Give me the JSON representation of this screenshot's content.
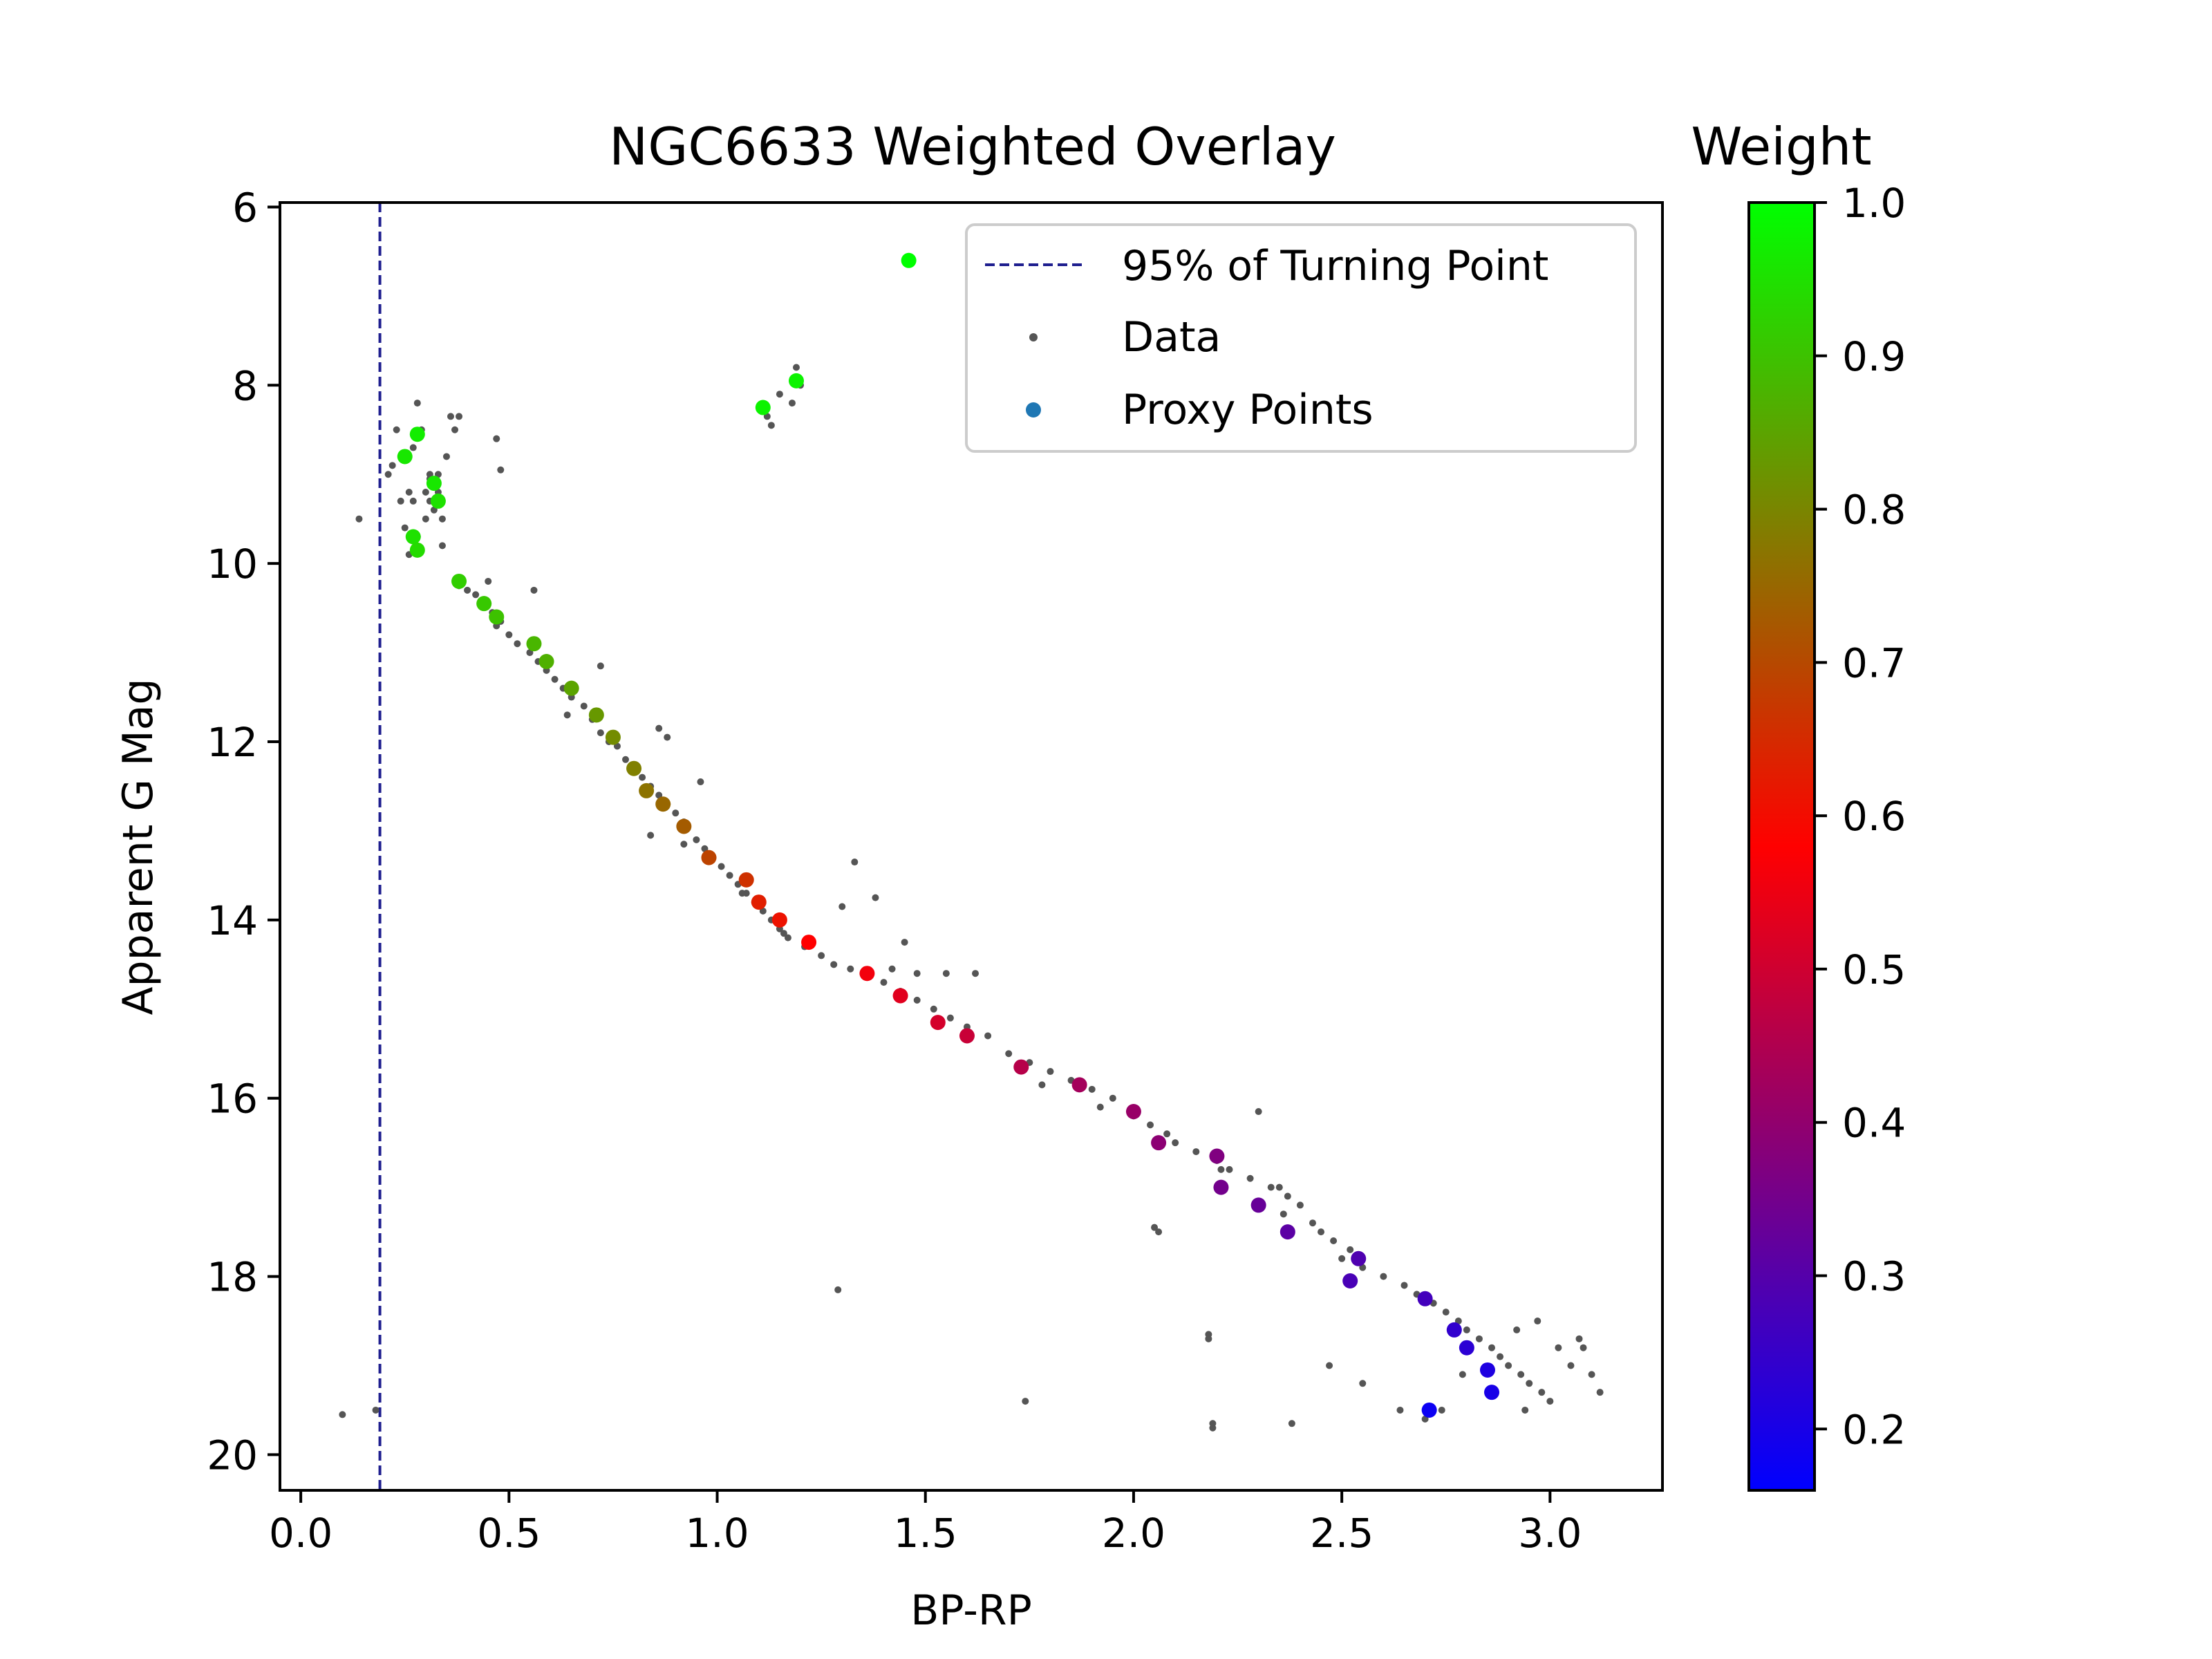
{
  "chart_data": {
    "type": "scatter",
    "title": "NGC6633 Weighted Overlay",
    "xlabel": "BP-RP",
    "ylabel": "Apparent G Mag",
    "xlim": [
      -0.05,
      3.27
    ],
    "ylim": [
      20.4,
      5.95
    ],
    "y_inverted": true,
    "xticks": [
      "0.0",
      "0.5",
      "1.0",
      "1.5",
      "2.0",
      "2.5",
      "3.0"
    ],
    "yticks": [
      "6",
      "8",
      "10",
      "12",
      "14",
      "16",
      "18",
      "20"
    ],
    "grid": false,
    "legend_position": "top-right",
    "turning_point_line": {
      "name": "95% of Turning Point",
      "x": 0.19,
      "color": "#1f1f8f",
      "style": "dashed"
    },
    "data_series": {
      "name": "Data",
      "color": "#555555",
      "x": [
        0.1,
        0.14,
        0.21,
        0.22,
        0.23,
        0.24,
        0.25,
        0.26,
        0.27,
        0.28,
        0.29,
        0.3,
        0.31,
        0.32,
        0.33,
        0.34,
        0.35,
        0.36,
        0.37,
        0.48,
        0.47,
        0.26,
        0.28,
        0.3,
        0.27,
        0.33,
        0.31,
        0.38,
        0.4,
        0.42,
        0.44,
        0.46,
        0.48,
        0.5,
        0.52,
        0.55,
        0.57,
        0.59,
        0.61,
        0.63,
        0.65,
        0.68,
        0.7,
        0.72,
        0.74,
        0.76,
        0.78,
        0.8,
        0.82,
        0.84,
        0.86,
        0.88,
        0.9,
        0.92,
        0.95,
        0.97,
        0.99,
        1.01,
        1.03,
        1.05,
        1.07,
        1.09,
        1.11,
        1.13,
        1.15,
        1.17,
        1.21,
        1.25,
        1.28,
        1.32,
        1.36,
        1.4,
        1.44,
        1.48,
        1.52,
        1.56,
        1.6,
        1.65,
        1.7,
        1.75,
        1.8,
        1.85,
        1.9,
        1.95,
        2.0,
        2.04,
        2.08,
        2.1,
        2.15,
        2.2,
        2.23,
        2.28,
        2.33,
        2.37,
        2.4,
        2.43,
        2.45,
        2.48,
        2.5,
        2.55,
        2.6,
        2.65,
        2.68,
        2.72,
        2.75,
        2.78,
        2.8,
        2.83,
        2.86,
        2.88,
        2.9,
        2.93,
        2.95,
        2.98,
        3.0,
        3.05,
        3.08,
        3.12,
        1.12,
        1.15,
        1.19,
        1.2,
        1.13,
        1.18,
        1.29,
        1.3,
        1.38,
        1.42,
        1.45,
        1.48,
        1.55,
        1.62,
        1.78,
        1.92,
        2.06,
        2.18,
        2.19,
        2.21,
        2.3,
        2.35,
        2.36,
        2.47,
        2.52,
        2.55,
        2.64,
        2.7,
        2.74,
        2.79,
        2.92,
        2.94,
        2.97,
        3.02,
        3.07,
        3.1,
        0.38,
        0.56,
        0.72,
        0.86,
        0.88,
        0.96,
        1.06,
        1.16,
        0.18,
        0.31,
        0.34,
        0.45,
        0.47,
        0.64,
        0.84,
        1.33,
        1.74,
        2.18,
        2.19,
        2.38,
        2.05,
        0.92
      ],
      "y": [
        19.55,
        9.5,
        9.0,
        8.9,
        8.5,
        9.3,
        9.6,
        9.2,
        8.7,
        8.2,
        8.5,
        9.2,
        9.3,
        9.4,
        9.2,
        9.5,
        8.8,
        8.35,
        8.5,
        8.95,
        8.6,
        9.9,
        9.7,
        9.5,
        9.3,
        9.0,
        9.05,
        10.25,
        10.3,
        10.35,
        10.45,
        10.55,
        10.65,
        10.8,
        10.9,
        11.0,
        11.1,
        11.2,
        11.3,
        11.4,
        11.5,
        11.6,
        11.75,
        11.9,
        12.0,
        12.05,
        12.2,
        12.3,
        12.4,
        12.5,
        12.6,
        12.7,
        12.8,
        12.9,
        13.1,
        13.2,
        13.3,
        13.4,
        13.5,
        13.6,
        13.7,
        13.8,
        13.9,
        14.0,
        14.1,
        14.2,
        14.3,
        14.4,
        14.5,
        14.55,
        14.6,
        14.7,
        14.8,
        14.9,
        15.0,
        15.1,
        15.2,
        15.3,
        15.5,
        15.6,
        15.7,
        15.8,
        15.9,
        16.0,
        16.2,
        16.3,
        16.4,
        16.5,
        16.6,
        16.7,
        16.8,
        16.9,
        17.0,
        17.1,
        17.2,
        17.4,
        17.5,
        17.6,
        17.8,
        17.9,
        18.0,
        18.1,
        18.2,
        18.3,
        18.4,
        18.5,
        18.6,
        18.7,
        18.8,
        18.9,
        19.0,
        19.1,
        19.2,
        19.3,
        19.4,
        19.0,
        18.8,
        19.3,
        8.35,
        8.1,
        7.8,
        8.0,
        8.45,
        8.2,
        18.15,
        13.85,
        13.75,
        14.55,
        14.25,
        14.6,
        14.6,
        14.6,
        15.85,
        16.1,
        17.5,
        18.7,
        19.7,
        16.8,
        16.15,
        17.0,
        17.3,
        19.0,
        17.7,
        19.2,
        19.5,
        19.6,
        19.5,
        19.1,
        18.6,
        19.5,
        18.5,
        18.8,
        18.7,
        19.1,
        8.35,
        10.3,
        11.15,
        11.85,
        11.95,
        12.45,
        13.7,
        14.15,
        19.5,
        9.0,
        9.8,
        10.2,
        10.7,
        11.7,
        13.05,
        13.35,
        19.4,
        18.65,
        19.65,
        19.65,
        17.45,
        13.15
      ]
    },
    "proxy_series": {
      "name": "Proxy Points",
      "legend_color": "#1f77b4",
      "x": [
        1.46,
        1.19,
        1.11,
        0.28,
        0.25,
        0.32,
        0.33,
        0.27,
        0.28,
        0.38,
        0.44,
        0.47,
        0.56,
        0.59,
        0.65,
        0.71,
        0.75,
        0.8,
        0.83,
        0.87,
        0.92,
        0.98,
        1.07,
        1.1,
        1.15,
        1.22,
        1.36,
        1.44,
        1.53,
        1.6,
        1.73,
        1.87,
        2.0,
        2.06,
        2.2,
        2.21,
        2.3,
        2.37,
        2.54,
        2.52,
        2.7,
        2.77,
        2.8,
        2.85,
        2.86,
        2.71
      ],
      "y": [
        6.6,
        7.95,
        8.25,
        8.55,
        8.8,
        9.1,
        9.3,
        9.7,
        9.85,
        10.2,
        10.45,
        10.6,
        10.9,
        11.1,
        11.4,
        11.7,
        11.95,
        12.3,
        12.55,
        12.7,
        12.95,
        13.3,
        13.55,
        13.8,
        14.0,
        14.25,
        14.6,
        14.85,
        15.15,
        15.3,
        15.65,
        15.85,
        16.15,
        16.5,
        16.65,
        17.0,
        17.2,
        17.5,
        17.8,
        18.05,
        18.25,
        18.6,
        18.8,
        19.05,
        19.3,
        19.5
      ],
      "weights": [
        1.0,
        0.98,
        0.98,
        0.97,
        0.96,
        0.96,
        0.95,
        0.95,
        0.94,
        0.92,
        0.91,
        0.9,
        0.88,
        0.87,
        0.85,
        0.83,
        0.81,
        0.79,
        0.77,
        0.75,
        0.73,
        0.69,
        0.66,
        0.63,
        0.61,
        0.58,
        0.56,
        0.53,
        0.51,
        0.49,
        0.46,
        0.43,
        0.41,
        0.39,
        0.37,
        0.35,
        0.33,
        0.31,
        0.29,
        0.28,
        0.27,
        0.24,
        0.23,
        0.21,
        0.2,
        0.18
      ]
    },
    "colorbar": {
      "label": "Weight",
      "range": [
        0.16,
        1.0
      ],
      "ticks": [
        "0.2",
        "0.3",
        "0.4",
        "0.5",
        "0.6",
        "0.7",
        "0.8",
        "0.9",
        "1.0"
      ],
      "colormap": [
        "#0000ff",
        "#ff0000",
        "#00ff00"
      ]
    }
  }
}
